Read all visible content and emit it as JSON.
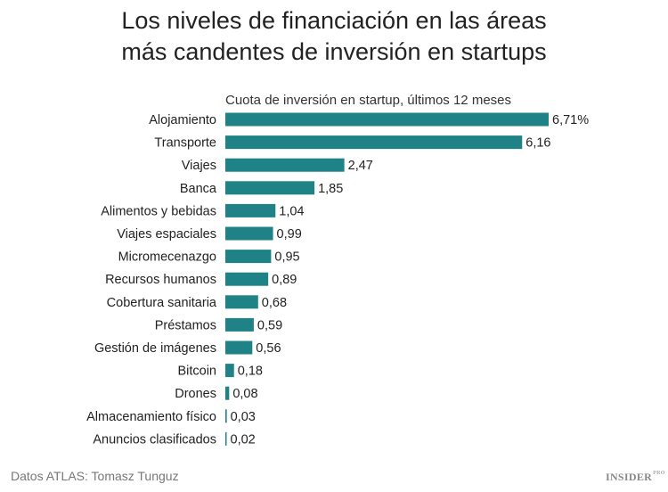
{
  "title_lines": [
    "Los niveles de financiación en las áreas",
    "más candentes de inversión en startups"
  ],
  "source": "Datos ATLAS: Tomasz Tunguz",
  "logo": {
    "main": "INSIDER",
    "sub": "PRO"
  },
  "chart_data": {
    "type": "bar",
    "orientation": "horizontal",
    "subtitle": "Cuota de inversión en startup, últimos 12 meses",
    "categories": [
      "Alojamiento",
      "Transporte",
      "Viajes",
      "Banca",
      "Alimentos y bebidas",
      "Viajes espaciales",
      "Micromecenazgo",
      "Recursos humanos",
      "Cobertura sanitaria",
      "Préstamos",
      "Gestión de imágenes",
      "Bitcoin",
      "Drones",
      "Almacenamiento físico",
      "Anuncios clasificados"
    ],
    "values": [
      6.71,
      6.16,
      2.47,
      1.85,
      1.04,
      0.99,
      0.95,
      0.89,
      0.68,
      0.59,
      0.56,
      0.18,
      0.08,
      0.03,
      0.02
    ],
    "labels": [
      "6,71%",
      "6,16",
      "2,47",
      "1,85",
      "1,04",
      "0,99",
      "0,95",
      "0,89",
      "0,68",
      "0,59",
      "0,56",
      "0,18",
      "0,08",
      "0,03",
      "0,02"
    ],
    "unit": "%",
    "grid": false,
    "color": "#1f8287"
  }
}
